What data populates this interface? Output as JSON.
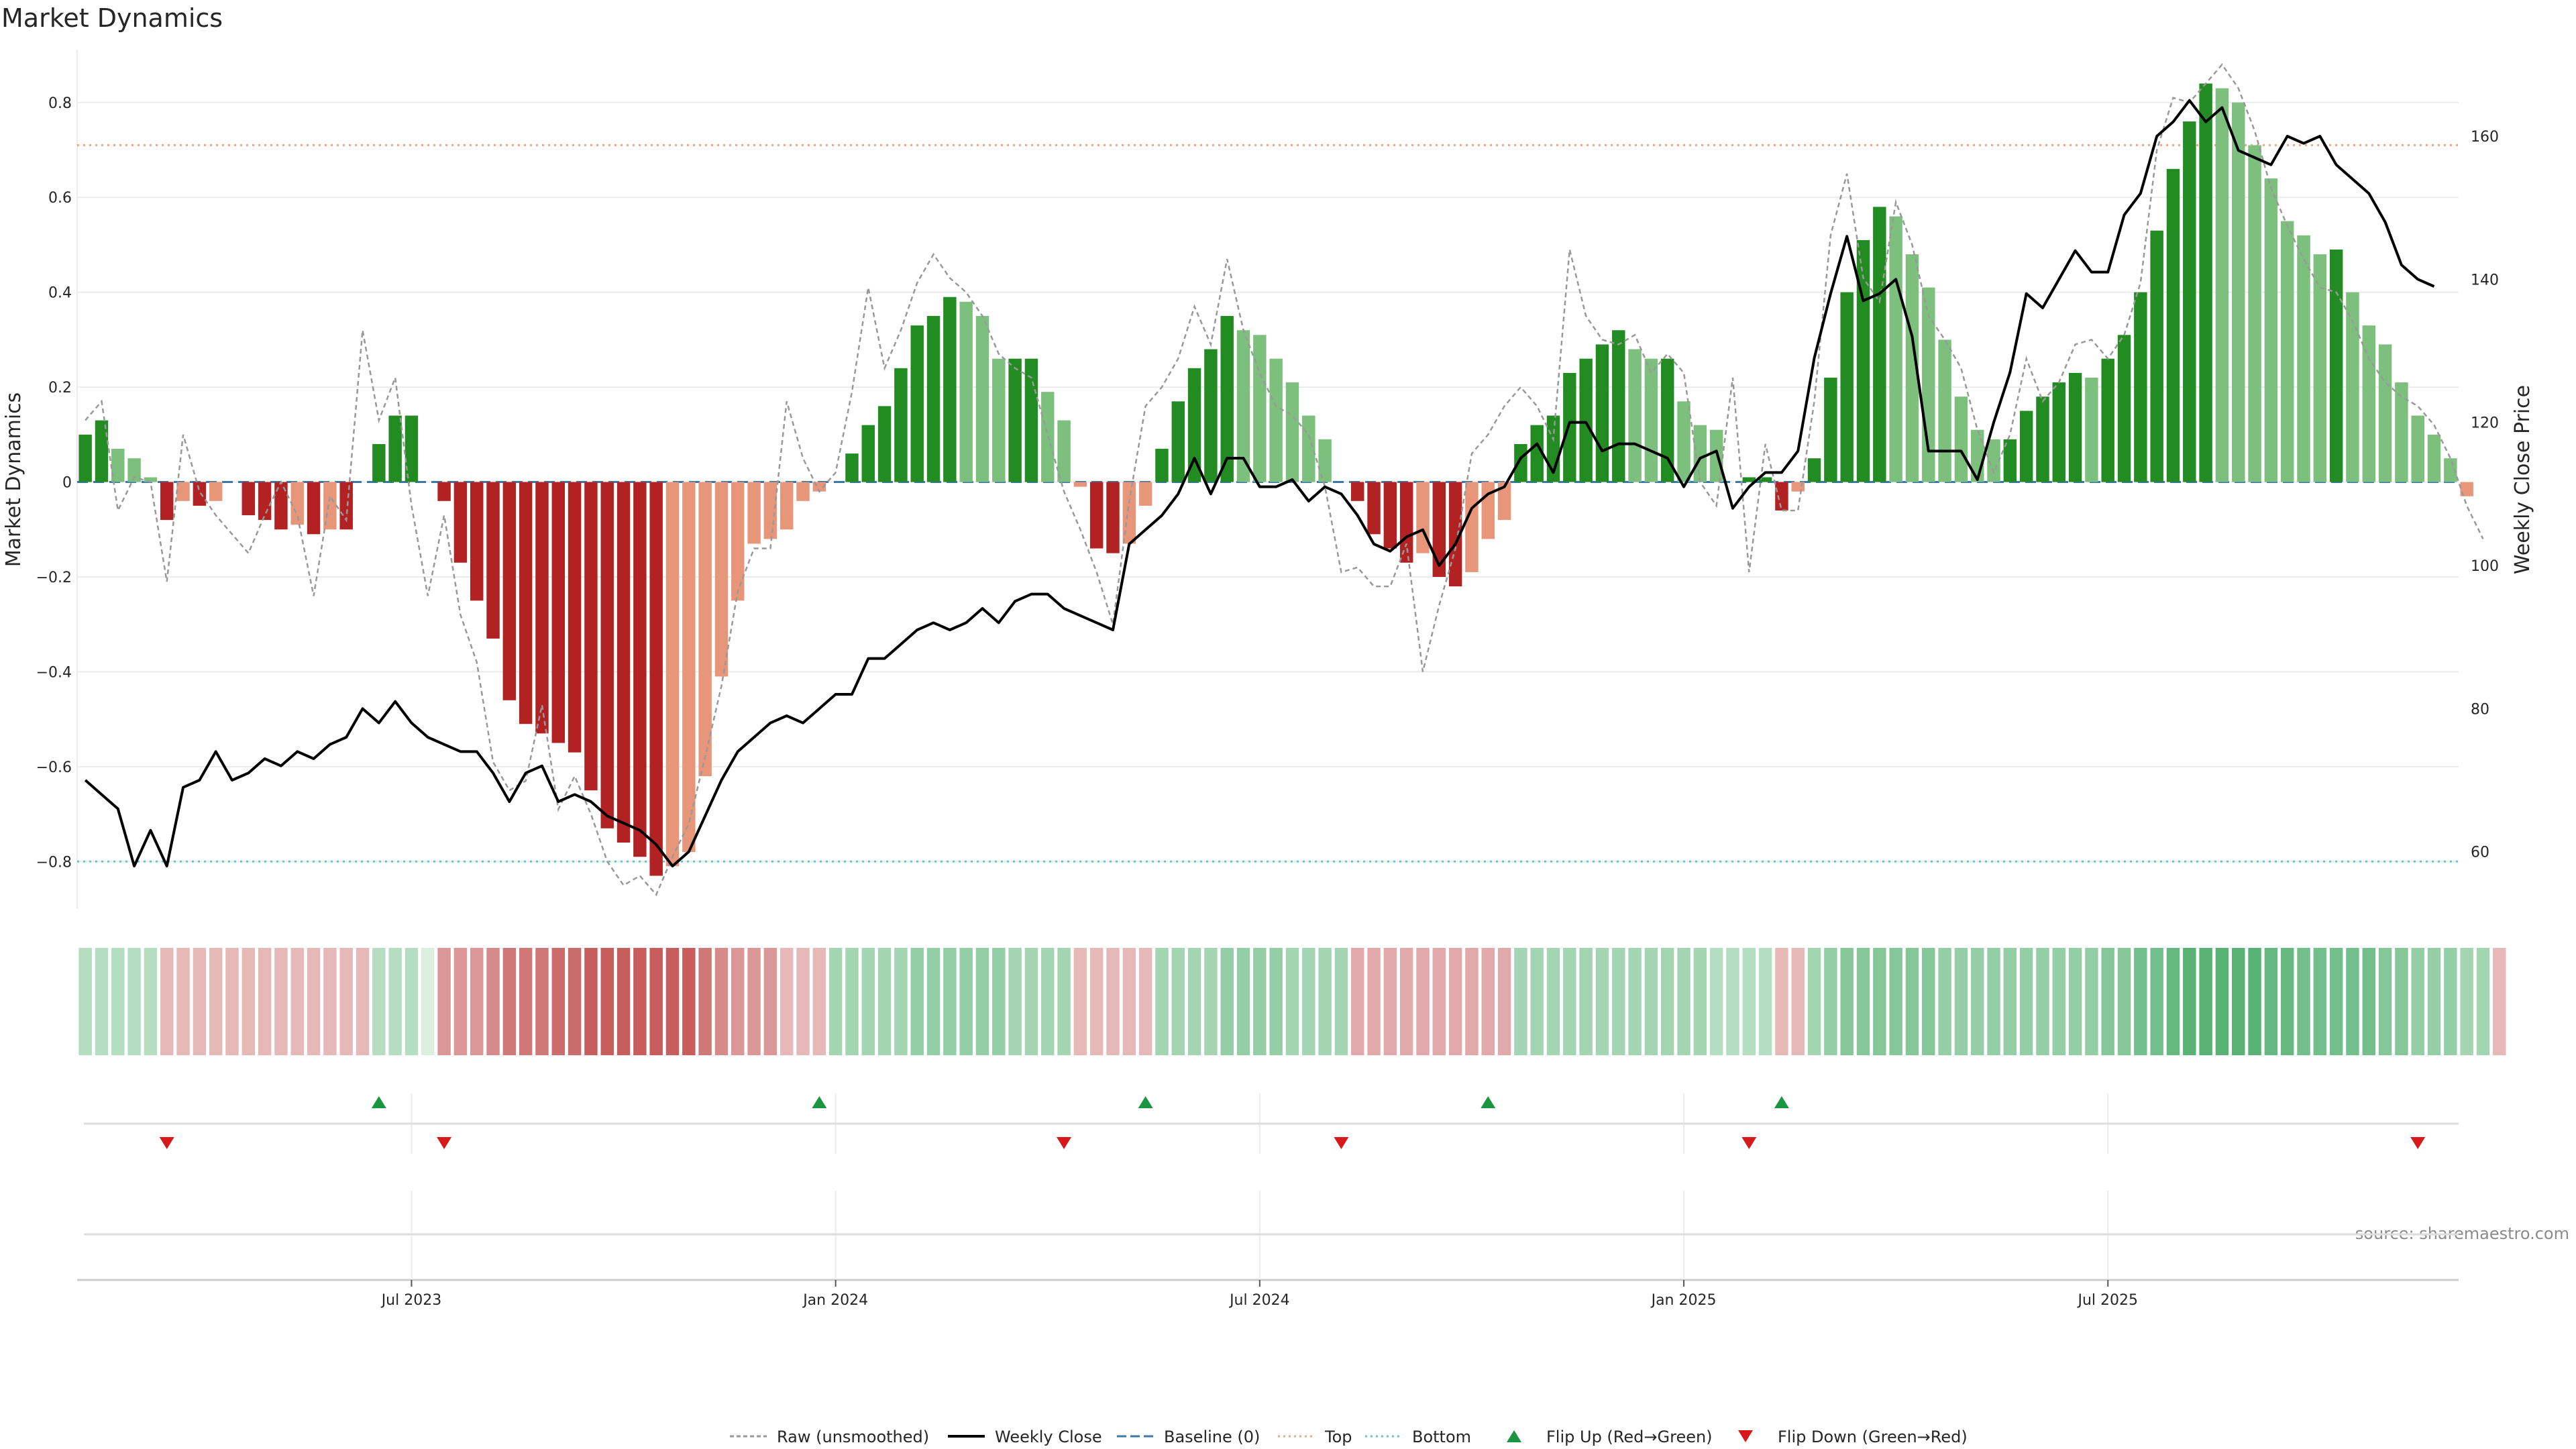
{
  "chart_data": {
    "type": "bar",
    "title": "Market Dynamics",
    "ylabel_left": "Market Dynamics",
    "ylabel_right": "Weekly Close Price",
    "source": "source: sharemaestro.com",
    "ylim_left": [
      -0.9,
      0.91
    ],
    "ylim_right": [
      52,
      172
    ],
    "left_ticks": [
      0.8,
      0.6,
      0.4,
      0.2,
      0,
      -0.2,
      -0.4,
      -0.6,
      -0.8
    ],
    "left_tick_labels": [
      "0.8",
      "0.6",
      "0.4",
      "0.2",
      "0",
      "−0.2",
      "−0.4",
      "−0.6",
      "−0.8"
    ],
    "right_ticks": [
      160,
      140,
      120,
      100,
      80,
      60
    ],
    "right_tick_labels": [
      "160",
      "140",
      "120",
      "100",
      "80",
      "60"
    ],
    "x_ticks": [
      20,
      46,
      72,
      98,
      124
    ],
    "x_tick_labels": [
      "Jul 2023",
      "Jan 2024",
      "Jul 2024",
      "Jan 2025",
      "Jul 2025"
    ],
    "thresholds": {
      "baseline": 0,
      "top": 0.71,
      "bottom": -0.8
    },
    "colors": {
      "strong_green": "#228b22",
      "weak_green": "#7dbf7d",
      "strong_red": "#b22222",
      "weak_red": "#e8967a",
      "close_line": "#000000",
      "raw_line": "#999999",
      "baseline": "#3a78a8",
      "top": "#f4a582",
      "bottom": "#5ec8d6",
      "flip_up": "#1a9641",
      "flip_down": "#d7191c",
      "grid": "#ebebeb"
    },
    "series": [
      {
        "name": "Momentum",
        "values": [
          0.1,
          0.13,
          0.07,
          0.05,
          0.01,
          -0.08,
          -0.04,
          -0.05,
          -0.04,
          0.0,
          -0.07,
          -0.08,
          -0.1,
          -0.09,
          -0.11,
          -0.1,
          -0.1,
          0.0,
          0.08,
          0.14,
          0.14,
          0.0,
          -0.04,
          -0.17,
          -0.25,
          -0.33,
          -0.46,
          -0.51,
          -0.53,
          -0.55,
          -0.57,
          -0.65,
          -0.73,
          -0.76,
          -0.79,
          -0.83,
          -0.81,
          -0.78,
          -0.62,
          -0.41,
          -0.25,
          -0.13,
          -0.12,
          -0.1,
          -0.04,
          -0.02,
          0.0,
          0.06,
          0.12,
          0.16,
          0.24,
          0.33,
          0.35,
          0.39,
          0.38,
          0.35,
          0.26,
          0.26,
          0.26,
          0.19,
          0.13,
          -0.01,
          -0.14,
          -0.15,
          -0.13,
          -0.05,
          0.07,
          0.17,
          0.24,
          0.28,
          0.35,
          0.32,
          0.31,
          0.26,
          0.21,
          0.14,
          0.09,
          0.0,
          -0.04,
          -0.11,
          -0.14,
          -0.17,
          -0.15,
          -0.2,
          -0.22,
          -0.19,
          -0.12,
          -0.08,
          0.08,
          0.12,
          0.14,
          0.23,
          0.26,
          0.29,
          0.32,
          0.28,
          0.26,
          0.26,
          0.17,
          0.12,
          0.11,
          0.0,
          0.01,
          0.01,
          -0.06,
          -0.02,
          0.05,
          0.22,
          0.4,
          0.51,
          0.58,
          0.56,
          0.48,
          0.41,
          0.3,
          0.18,
          0.11,
          0.09,
          0.09,
          0.15,
          0.18,
          0.21,
          0.23,
          0.22,
          0.26,
          0.31,
          0.4,
          0.53,
          0.66,
          0.76,
          0.84,
          0.83,
          0.8,
          0.71,
          0.64,
          0.55,
          0.52,
          0.48,
          0.49,
          0.4,
          0.33,
          0.29,
          0.21,
          0.14,
          0.1,
          0.05,
          -0.03
        ]
      },
      {
        "name": "Raw (unsmoothed)",
        "values": [
          0.13,
          0.17,
          -0.06,
          0.01,
          0.0,
          -0.21,
          0.1,
          -0.02,
          -0.07,
          -0.11,
          -0.15,
          -0.07,
          0.0,
          -0.07,
          -0.24,
          -0.03,
          -0.08,
          0.32,
          0.13,
          0.22,
          -0.05,
          -0.24,
          -0.07,
          -0.28,
          -0.38,
          -0.59,
          -0.65,
          -0.63,
          -0.47,
          -0.69,
          -0.62,
          -0.7,
          -0.8,
          -0.85,
          -0.83,
          -0.87,
          -0.79,
          -0.72,
          -0.58,
          -0.43,
          -0.23,
          -0.14,
          -0.14,
          0.17,
          0.05,
          -0.02,
          0.02,
          0.19,
          0.41,
          0.24,
          0.32,
          0.42,
          0.48,
          0.43,
          0.4,
          0.35,
          0.27,
          0.24,
          0.22,
          0.1,
          -0.02,
          -0.1,
          -0.19,
          -0.3,
          -0.04,
          0.16,
          0.2,
          0.26,
          0.37,
          0.29,
          0.47,
          0.32,
          0.23,
          0.16,
          0.14,
          0.1,
          -0.01,
          -0.19,
          -0.18,
          -0.22,
          -0.22,
          -0.13,
          -0.4,
          -0.26,
          -0.14,
          0.06,
          0.1,
          0.16,
          0.2,
          0.16,
          0.09,
          0.49,
          0.35,
          0.3,
          0.29,
          0.31,
          0.23,
          0.27,
          0.23,
          0.0,
          -0.05,
          0.22,
          -0.19,
          0.08,
          -0.06,
          -0.06,
          0.17,
          0.52,
          0.65,
          0.43,
          0.38,
          0.59,
          0.5,
          0.35,
          0.3,
          0.24,
          0.11,
          0.02,
          0.1,
          0.26,
          0.17,
          0.21,
          0.29,
          0.3,
          0.26,
          0.31,
          0.42,
          0.7,
          0.81,
          0.8,
          0.84,
          0.88,
          0.83,
          0.74,
          0.62,
          0.54,
          0.47,
          0.41,
          0.4,
          0.34,
          0.26,
          0.21,
          0.18,
          0.16,
          0.12,
          0.05,
          -0.05,
          -0.12
        ]
      },
      {
        "name": "Weekly Close",
        "values": [
          70,
          68,
          66,
          58,
          63,
          58,
          69,
          70,
          74,
          70,
          71,
          73,
          72,
          74,
          73,
          75,
          76,
          80,
          78,
          81,
          78,
          76,
          75,
          74,
          74,
          71,
          67,
          71,
          72,
          67,
          68,
          67,
          65,
          64,
          63,
          61,
          58,
          60,
          65,
          70,
          74,
          76,
          78,
          79,
          78,
          80,
          82,
          82,
          87,
          87,
          89,
          91,
          92,
          91,
          92,
          94,
          92,
          95,
          96,
          96,
          94,
          93,
          92,
          91,
          103,
          105,
          107,
          110,
          115,
          110,
          115,
          115,
          111,
          111,
          112,
          109,
          111,
          110,
          107,
          103,
          102,
          104,
          105,
          100,
          103,
          108,
          110,
          111,
          115,
          117,
          113,
          120,
          120,
          116,
          117,
          117,
          116,
          115,
          111,
          115,
          116,
          108,
          111,
          113,
          113,
          116,
          129,
          138,
          146,
          137,
          138,
          140,
          132,
          116,
          116,
          116,
          112,
          120,
          127,
          138,
          136,
          140,
          144,
          141,
          141,
          149,
          152,
          160,
          162,
          165,
          162,
          164,
          158,
          157,
          156,
          160,
          159,
          160,
          156,
          154,
          152,
          148,
          142,
          140,
          139
        ]
      },
      {
        "name": "Heat",
        "values": [
          0.2,
          0.2,
          0.2,
          0.2,
          0.2,
          -0.2,
          -0.2,
          -0.2,
          -0.2,
          -0.2,
          -0.2,
          -0.2,
          -0.2,
          -0.2,
          -0.2,
          -0.2,
          -0.2,
          -0.2,
          0.2,
          0.2,
          0.2,
          0.0,
          -0.38,
          -0.38,
          -0.38,
          -0.45,
          -0.55,
          -0.55,
          -0.55,
          -0.62,
          -0.62,
          -0.7,
          -0.7,
          -0.7,
          -0.7,
          -0.7,
          -0.7,
          -0.7,
          -0.55,
          -0.45,
          -0.38,
          -0.38,
          -0.38,
          -0.2,
          -0.2,
          -0.2,
          0.3,
          0.3,
          0.3,
          0.3,
          0.3,
          0.38,
          0.38,
          0.38,
          0.38,
          0.38,
          0.38,
          0.3,
          0.3,
          0.3,
          0.3,
          -0.2,
          -0.2,
          -0.2,
          -0.2,
          -0.2,
          0.3,
          0.3,
          0.3,
          0.3,
          0.38,
          0.38,
          0.38,
          0.38,
          0.3,
          0.3,
          0.3,
          0.3,
          -0.28,
          -0.28,
          -0.28,
          -0.28,
          -0.28,
          -0.28,
          -0.28,
          -0.28,
          -0.28,
          -0.28,
          0.3,
          0.3,
          0.3,
          0.3,
          0.3,
          0.3,
          0.3,
          0.3,
          0.3,
          0.3,
          0.3,
          0.3,
          0.2,
          0.2,
          0.2,
          0.2,
          -0.2,
          -0.2,
          0.3,
          0.38,
          0.45,
          0.45,
          0.45,
          0.45,
          0.45,
          0.45,
          0.38,
          0.38,
          0.38,
          0.38,
          0.38,
          0.38,
          0.38,
          0.38,
          0.38,
          0.38,
          0.45,
          0.45,
          0.55,
          0.55,
          0.62,
          0.7,
          0.7,
          0.7,
          0.7,
          0.7,
          0.62,
          0.62,
          0.55,
          0.55,
          0.55,
          0.55,
          0.55,
          0.45,
          0.45,
          0.38,
          0.38,
          0.38,
          0.3,
          0.3,
          -0.2
        ]
      }
    ],
    "flip_up": [
      18,
      45,
      65,
      86,
      104
    ],
    "flip_down": [
      5,
      22,
      60,
      77,
      102,
      143
    ],
    "legend": [
      "Raw (unsmoothed)",
      "Weekly Close",
      "Baseline (0)",
      "Top",
      "Bottom",
      "Flip Up (Red→Green)",
      "Flip Down (Green→Red)"
    ]
  }
}
